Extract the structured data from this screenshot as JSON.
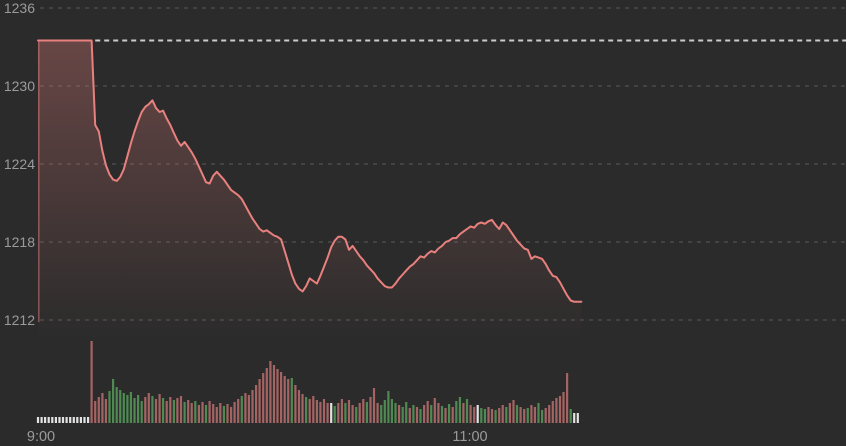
{
  "panel": {
    "name": "index-intraday-chart"
  },
  "colors": {
    "background": "#2b2b2b",
    "grid": "#4a4a4a",
    "reference": "#cbcbcb",
    "line": "#e8817e",
    "label": "#9b9b9b",
    "volume_up": "#4e8a52",
    "volume_down": "#a56464",
    "volume_neutral": "#e3e3e3"
  },
  "chart_data": {
    "type": "line",
    "title": "",
    "xlabel": "",
    "ylabel": "",
    "legend": "none",
    "grid": "horizontal-dashed",
    "y_axis": {
      "ticks": [
        1236,
        1230,
        1224,
        1218,
        1212
      ],
      "min": 1211,
      "max": 1237
    },
    "x_axis": {
      "unit": "minutes-from-09:00",
      "labels": [
        {
          "text": "9:00",
          "minute": 0
        },
        {
          "text": "11:00",
          "minute": 120
        }
      ]
    },
    "reference_price": 1233.5,
    "series": [
      {
        "name": "index-price",
        "interval": "1-minute",
        "prices": [
          1233.5,
          1233.5,
          1233.5,
          1233.5,
          1233.5,
          1233.5,
          1233.5,
          1233.5,
          1233.5,
          1233.5,
          1233.5,
          1233.5,
          1233.5,
          1233.5,
          1233.5,
          1233.5,
          1227.0,
          1226.5,
          1225.0,
          1223.9,
          1223.2,
          1222.8,
          1222.7,
          1223.0,
          1223.6,
          1224.6,
          1225.6,
          1226.5,
          1227.3,
          1228.0,
          1228.4,
          1228.6,
          1228.9,
          1228.3,
          1228.0,
          1228.1,
          1227.5,
          1227.0,
          1226.4,
          1225.8,
          1225.4,
          1225.7,
          1225.3,
          1224.9,
          1224.4,
          1223.8,
          1223.2,
          1222.6,
          1222.5,
          1223.1,
          1223.4,
          1223.1,
          1222.8,
          1222.4,
          1222.0,
          1221.8,
          1221.6,
          1221.3,
          1220.8,
          1220.3,
          1219.8,
          1219.4,
          1219.0,
          1218.8,
          1218.9,
          1218.7,
          1218.5,
          1218.4,
          1218.2,
          1217.3,
          1216.4,
          1215.5,
          1214.8,
          1214.4,
          1214.2,
          1214.6,
          1215.2,
          1215.0,
          1214.8,
          1215.4,
          1216.1,
          1216.8,
          1217.6,
          1218.1,
          1218.4,
          1218.4,
          1218.2,
          1217.4,
          1217.7,
          1217.3,
          1216.9,
          1216.6,
          1216.2,
          1215.9,
          1215.6,
          1215.2,
          1214.9,
          1214.6,
          1214.5,
          1214.5,
          1214.8,
          1215.2,
          1215.5,
          1215.8,
          1216.1,
          1216.3,
          1216.6,
          1216.9,
          1216.8,
          1217.1,
          1217.3,
          1217.2,
          1217.5,
          1217.7,
          1218.0,
          1218.1,
          1218.3,
          1218.3,
          1218.6,
          1218.8,
          1219.0,
          1219.2,
          1219.1,
          1219.4,
          1219.5,
          1219.4,
          1219.6,
          1219.7,
          1219.3,
          1219.0,
          1219.5,
          1219.3,
          1218.9,
          1218.5,
          1218.1,
          1217.8,
          1217.5,
          1217.4,
          1216.7,
          1216.9,
          1216.8,
          1216.7,
          1216.3,
          1215.8,
          1215.4,
          1215.3,
          1214.9,
          1214.4,
          1213.9,
          1213.5,
          1213.4,
          1213.4,
          1213.4
        ]
      }
    ],
    "volume": {
      "interval": "1-minute",
      "color_codes": {
        "u": "up-green",
        "d": "down-red",
        "n": "neutral-white"
      },
      "bars": [
        [
          6,
          "n"
        ],
        [
          6,
          "n"
        ],
        [
          6,
          "n"
        ],
        [
          6,
          "n"
        ],
        [
          6,
          "n"
        ],
        [
          6,
          "n"
        ],
        [
          6,
          "n"
        ],
        [
          6,
          "n"
        ],
        [
          6,
          "n"
        ],
        [
          6,
          "n"
        ],
        [
          6,
          "n"
        ],
        [
          6,
          "n"
        ],
        [
          6,
          "n"
        ],
        [
          6,
          "n"
        ],
        [
          6,
          "n"
        ],
        [
          82,
          "d"
        ],
        [
          22,
          "d"
        ],
        [
          26,
          "d"
        ],
        [
          30,
          "d"
        ],
        [
          24,
          "d"
        ],
        [
          32,
          "u"
        ],
        [
          44,
          "u"
        ],
        [
          36,
          "u"
        ],
        [
          33,
          "u"
        ],
        [
          30,
          "u"
        ],
        [
          28,
          "u"
        ],
        [
          31,
          "u"
        ],
        [
          25,
          "u"
        ],
        [
          28,
          "u"
        ],
        [
          22,
          "u"
        ],
        [
          26,
          "d"
        ],
        [
          30,
          "d"
        ],
        [
          27,
          "u"
        ],
        [
          24,
          "d"
        ],
        [
          29,
          "d"
        ],
        [
          25,
          "u"
        ],
        [
          22,
          "d"
        ],
        [
          26,
          "d"
        ],
        [
          23,
          "u"
        ],
        [
          25,
          "d"
        ],
        [
          27,
          "d"
        ],
        [
          21,
          "u"
        ],
        [
          23,
          "d"
        ],
        [
          20,
          "d"
        ],
        [
          22,
          "u"
        ],
        [
          18,
          "d"
        ],
        [
          21,
          "d"
        ],
        [
          18,
          "u"
        ],
        [
          22,
          "d"
        ],
        [
          19,
          "d"
        ],
        [
          16,
          "d"
        ],
        [
          20,
          "d"
        ],
        [
          17,
          "u"
        ],
        [
          19,
          "d"
        ],
        [
          16,
          "d"
        ],
        [
          21,
          "d"
        ],
        [
          24,
          "d"
        ],
        [
          27,
          "u"
        ],
        [
          30,
          "d"
        ],
        [
          28,
          "d"
        ],
        [
          33,
          "d"
        ],
        [
          38,
          "d"
        ],
        [
          44,
          "d"
        ],
        [
          50,
          "d"
        ],
        [
          55,
          "d"
        ],
        [
          62,
          "d"
        ],
        [
          58,
          "d"
        ],
        [
          54,
          "d"
        ],
        [
          51,
          "d"
        ],
        [
          47,
          "d"
        ],
        [
          44,
          "d"
        ],
        [
          45,
          "u"
        ],
        [
          38,
          "d"
        ],
        [
          33,
          "d"
        ],
        [
          29,
          "d"
        ],
        [
          26,
          "u"
        ],
        [
          24,
          "d"
        ],
        [
          27,
          "d"
        ],
        [
          23,
          "d"
        ],
        [
          21,
          "d"
        ],
        [
          24,
          "d"
        ],
        [
          20,
          "d"
        ],
        [
          20,
          "n"
        ],
        [
          17,
          "u"
        ],
        [
          20,
          "d"
        ],
        [
          24,
          "d"
        ],
        [
          20,
          "u"
        ],
        [
          23,
          "d"
        ],
        [
          18,
          "d"
        ],
        [
          16,
          "u"
        ],
        [
          20,
          "d"
        ],
        [
          24,
          "d"
        ],
        [
          21,
          "u"
        ],
        [
          26,
          "d"
        ],
        [
          35,
          "d"
        ],
        [
          20,
          "d"
        ],
        [
          18,
          "u"
        ],
        [
          23,
          "u"
        ],
        [
          32,
          "u"
        ],
        [
          24,
          "u"
        ],
        [
          20,
          "u"
        ],
        [
          18,
          "d"
        ],
        [
          16,
          "u"
        ],
        [
          21,
          "u"
        ],
        [
          15,
          "d"
        ],
        [
          18,
          "u"
        ],
        [
          16,
          "d"
        ],
        [
          14,
          "u"
        ],
        [
          18,
          "d"
        ],
        [
          22,
          "d"
        ],
        [
          18,
          "u"
        ],
        [
          25,
          "d"
        ],
        [
          20,
          "d"
        ],
        [
          17,
          "u"
        ],
        [
          15,
          "d"
        ],
        [
          19,
          "u"
        ],
        [
          16,
          "d"
        ],
        [
          22,
          "u"
        ],
        [
          26,
          "u"
        ],
        [
          20,
          "d"
        ],
        [
          24,
          "u"
        ],
        [
          18,
          "d"
        ],
        [
          16,
          "d"
        ],
        [
          18,
          "n"
        ],
        [
          15,
          "u"
        ],
        [
          14,
          "u"
        ],
        [
          16,
          "d"
        ],
        [
          14,
          "d"
        ],
        [
          13,
          "u"
        ],
        [
          15,
          "d"
        ],
        [
          18,
          "d"
        ],
        [
          16,
          "u"
        ],
        [
          20,
          "d"
        ],
        [
          23,
          "d"
        ],
        [
          18,
          "u"
        ],
        [
          16,
          "d"
        ],
        [
          14,
          "d"
        ],
        [
          15,
          "u"
        ],
        [
          18,
          "d"
        ],
        [
          16,
          "d"
        ],
        [
          20,
          "u"
        ],
        [
          13,
          "u"
        ],
        [
          15,
          "d"
        ],
        [
          18,
          "d"
        ],
        [
          22,
          "d"
        ],
        [
          25,
          "d"
        ],
        [
          27,
          "d"
        ],
        [
          31,
          "d"
        ],
        [
          50,
          "d"
        ],
        [
          14,
          "u"
        ],
        [
          10,
          "n"
        ],
        [
          10,
          "n"
        ]
      ]
    }
  }
}
